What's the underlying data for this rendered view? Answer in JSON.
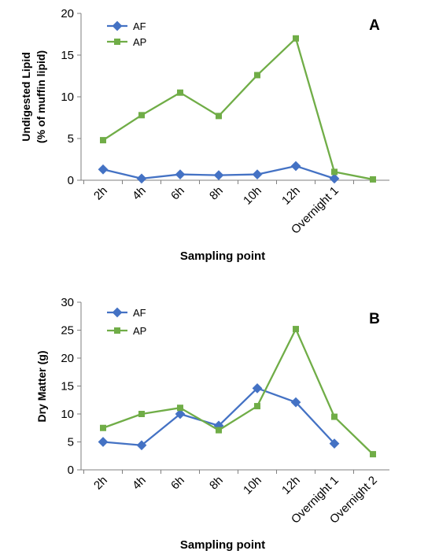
{
  "colors": {
    "AF": "#4472C4",
    "AP": "#70AD47",
    "axis": "#7f7f7f"
  },
  "chart_data": [
    {
      "type": "line",
      "panel_label": "A",
      "categories": [
        "2h",
        "4h",
        "6h",
        "8h",
        "10h",
        "12h",
        "Overnight 1",
        ""
      ],
      "series": [
        {
          "name": "AF",
          "values": [
            1.3,
            0.2,
            0.7,
            0.6,
            0.7,
            1.7,
            0.2,
            null
          ]
        },
        {
          "name": "AP",
          "values": [
            4.8,
            7.8,
            10.5,
            7.7,
            12.6,
            17.0,
            1.0,
            0.1
          ]
        }
      ],
      "xlabel": "Sampling point",
      "ylabel_line1": "Undigested Lipid",
      "ylabel_line2": "(% of muffin lipid)",
      "ylim": [
        0,
        20
      ],
      "yticks": [
        "0",
        "5",
        "10",
        "15",
        "20"
      ],
      "legend": "top-left",
      "grid": false
    },
    {
      "type": "line",
      "panel_label": "B",
      "categories": [
        "2h",
        "4h",
        "6h",
        "8h",
        "10h",
        "12h",
        "Overnight 1",
        "Overnight 2"
      ],
      "series": [
        {
          "name": "AF",
          "values": [
            5.0,
            4.4,
            10.0,
            7.9,
            14.6,
            12.1,
            4.7,
            null
          ]
        },
        {
          "name": "AP",
          "values": [
            7.5,
            10.0,
            11.1,
            7.1,
            11.4,
            25.2,
            9.5,
            2.8
          ]
        }
      ],
      "xlabel": "Sampling point",
      "ylabel_line1": "Dry Matter (g)",
      "ylabel_line2": "",
      "ylim": [
        0,
        30
      ],
      "yticks": [
        "0",
        "5",
        "10",
        "15",
        "20",
        "25",
        "30"
      ],
      "legend": "top-left",
      "grid": false
    }
  ]
}
